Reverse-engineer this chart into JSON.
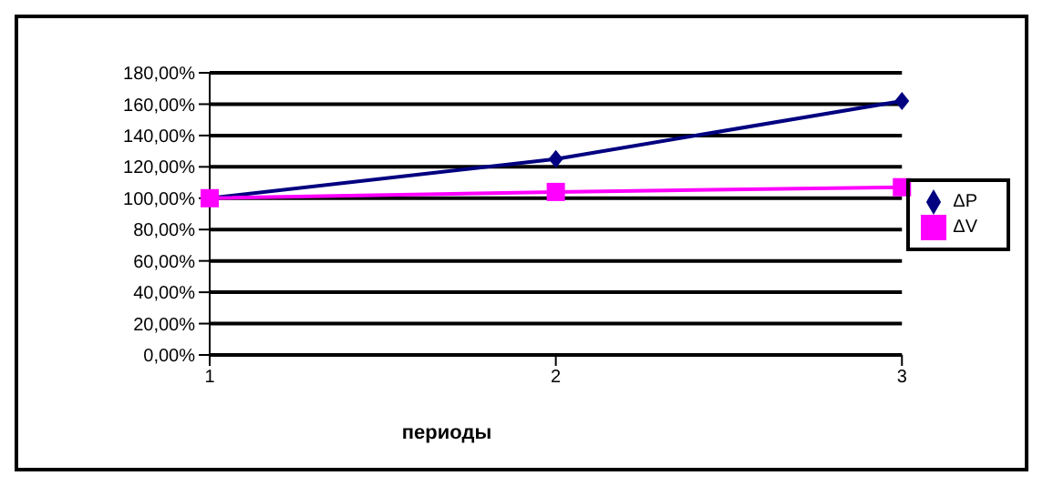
{
  "chart_data": {
    "type": "line",
    "xlabel": "периоды",
    "categories": [
      "1",
      "2",
      "3"
    ],
    "series": [
      {
        "name": "ΔP",
        "color": "#000080",
        "values": [
          100,
          125,
          162
        ],
        "marker": "diamond"
      },
      {
        "name": "ΔV",
        "color": "#ff00ff",
        "values": [
          100,
          104,
          107
        ],
        "marker": "square"
      }
    ],
    "ylim": [
      0,
      180
    ],
    "yticks": [
      {
        "value": 0,
        "label": "0,00%"
      },
      {
        "value": 20,
        "label": "20,00%"
      },
      {
        "value": 40,
        "label": "40,00%"
      },
      {
        "value": 60,
        "label": "60,00%"
      },
      {
        "value": 80,
        "label": "80,00%"
      },
      {
        "value": 100,
        "label": "100,00%"
      },
      {
        "value": 120,
        "label": "120,00%"
      },
      {
        "value": 140,
        "label": "140,00%"
      },
      {
        "value": 160,
        "label": "160,00%"
      },
      {
        "value": 180,
        "label": "180,00%"
      }
    ],
    "grid": "y",
    "legend": "right"
  }
}
